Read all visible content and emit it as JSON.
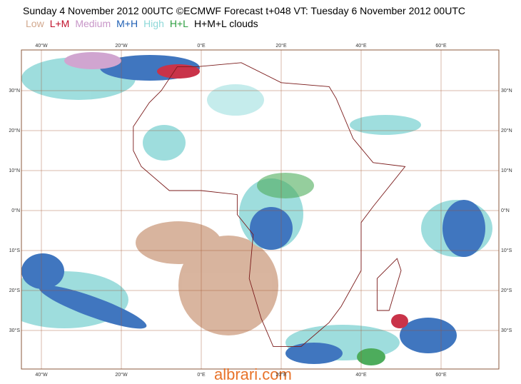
{
  "header": {
    "title": "Sunday 4 November 2012 00UTC ©ECMWF Forecast t+048 VT: Tuesday 6 November 2012 00UTC",
    "legend": [
      {
        "label": "Low",
        "color": "#d2a88e"
      },
      {
        "label": "L+M",
        "color": "#c0102a"
      },
      {
        "label": "Medium",
        "color": "#c896c8"
      },
      {
        "label": "M+H",
        "color": "#1f5fb4"
      },
      {
        "label": "High",
        "color": "#8ed8d8"
      },
      {
        "label": "H+L",
        "color": "#2e9e40"
      },
      {
        "label": "H+M+L clouds",
        "color": "#000000"
      }
    ]
  },
  "map": {
    "lon_labels": [
      "40°W",
      "20°W",
      "0°E",
      "20°E",
      "40°E",
      "60°E"
    ],
    "lat_labels": [
      "30°N",
      "20°N",
      "10°N",
      "0°N",
      "10°S",
      "20°S",
      "30°S"
    ]
  },
  "watermark": "albrari.com"
}
